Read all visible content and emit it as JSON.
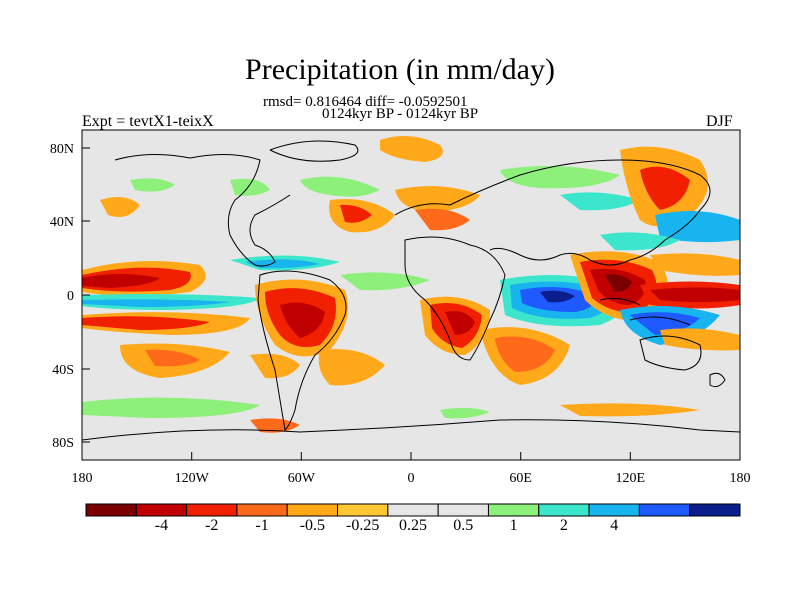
{
  "title": "Precipitation (in mm/day)",
  "stats_line": "rmsd= 0.816464 diff= -0.0592501",
  "period_line": "0124kyr BP - 0124kyr BP",
  "left_label": "Expt = tevtX1-teixX",
  "right_label": "DJF",
  "lat_labels": [
    "80N",
    "40N",
    "0",
    "40S",
    "80S"
  ],
  "lon_labels": [
    "180",
    "120W",
    "60W",
    "0",
    "60E",
    "120E",
    "180"
  ],
  "colorbar": {
    "colors": [
      "#7a0000",
      "#c00000",
      "#f02000",
      "#ff6a1a",
      "#ffa81a",
      "#ffc832",
      "#e6e6e6",
      "#e6e6e6",
      "#8cf07a",
      "#3ce6cc",
      "#18b4f0",
      "#1e5aff",
      "#0a1e8c"
    ],
    "labels": [
      "-4",
      "-2",
      "-1",
      "-0.5",
      "-0.25",
      "0.25",
      "0.5",
      "1",
      "2",
      "4"
    ]
  }
}
